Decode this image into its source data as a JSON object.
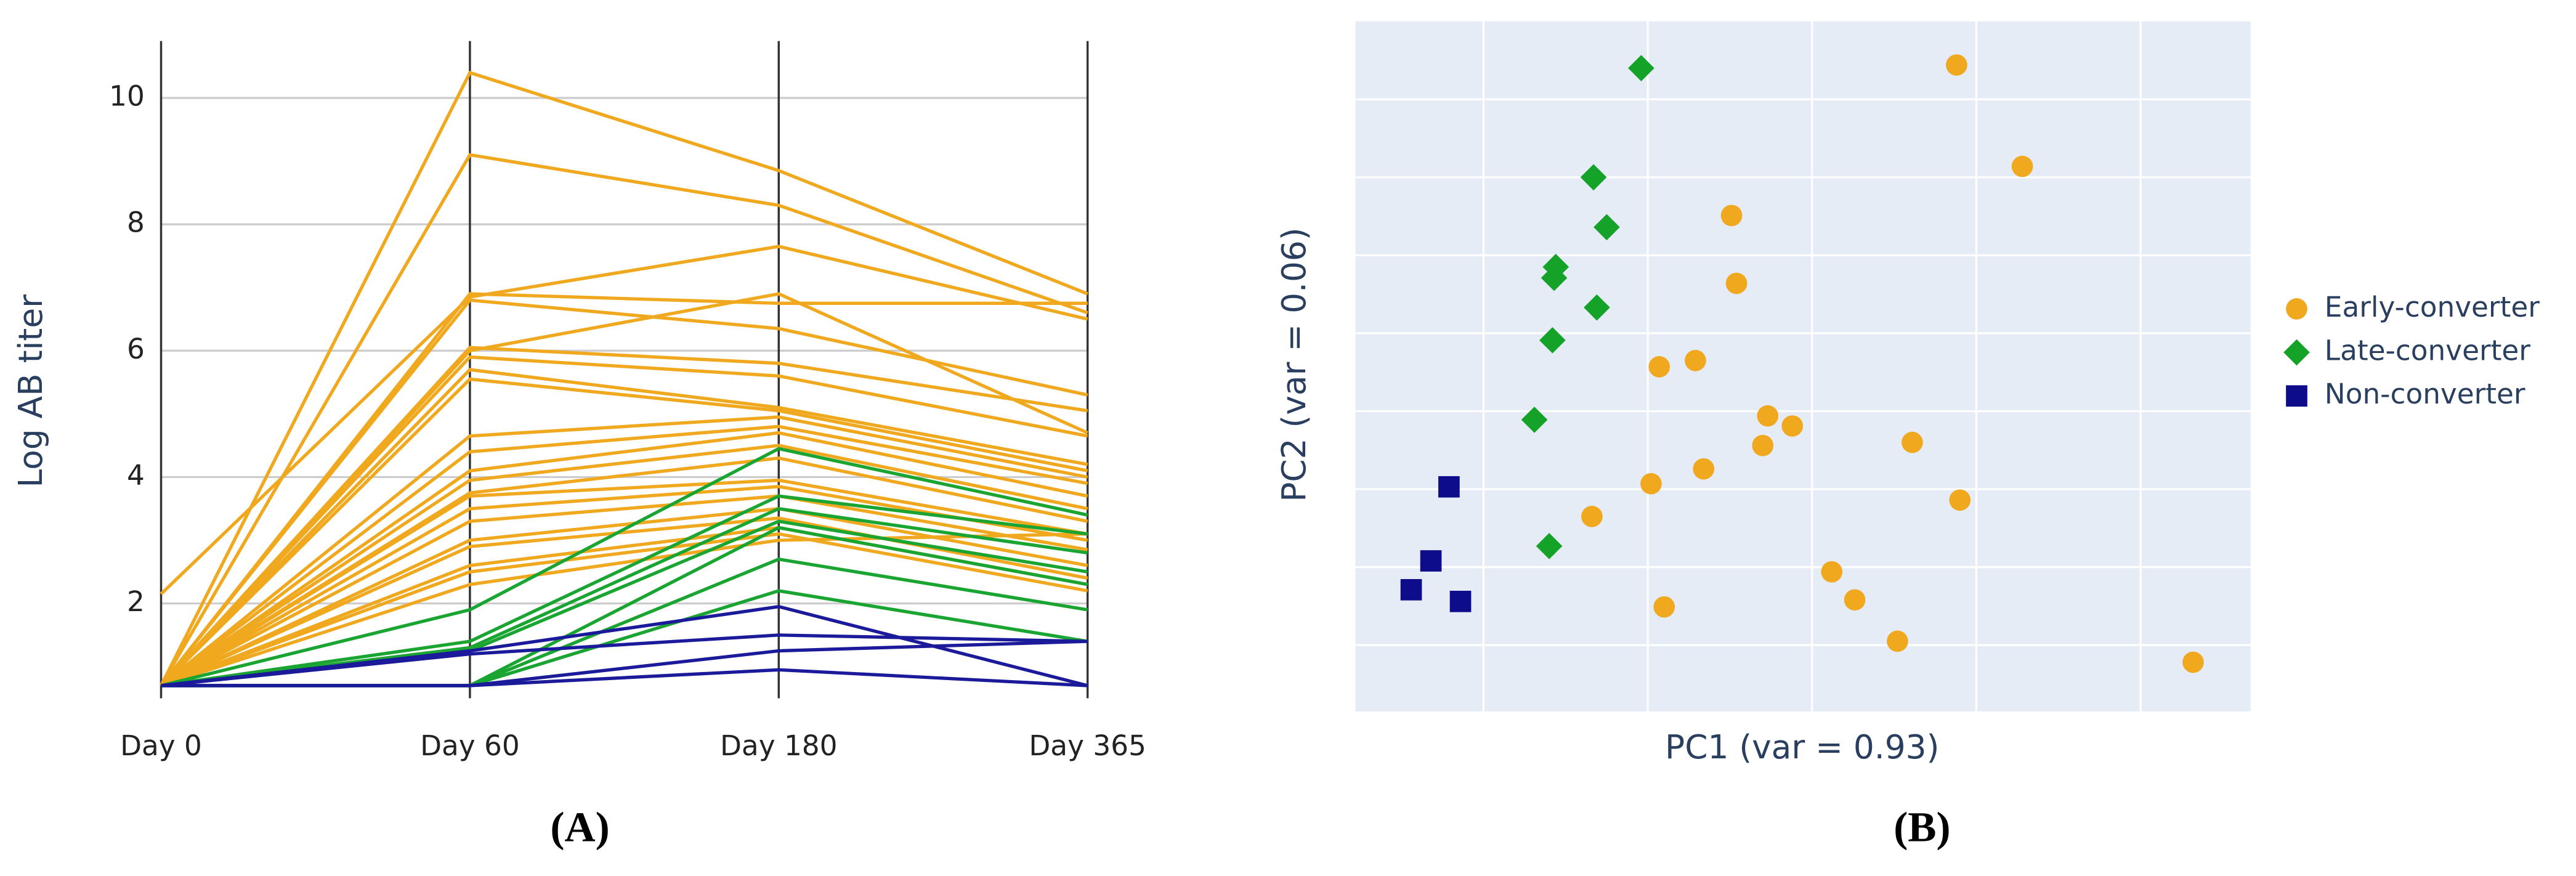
{
  "chart_data": [
    {
      "type": "line",
      "panel_label": "(A)",
      "ylabel": "Log AB titer",
      "categories": [
        "Day 0",
        "Day 60",
        "Day 180",
        "Day 365"
      ],
      "ylim": [
        0.5,
        10.9
      ],
      "yticks": [
        2,
        4,
        6,
        8,
        10
      ],
      "grid": true,
      "series": [
        {
          "color": "#f0a81e",
          "values": [
            0.7,
            10.4,
            8.85,
            6.9
          ]
        },
        {
          "color": "#f0a81e",
          "values": [
            0.7,
            9.1,
            8.3,
            6.6
          ]
        },
        {
          "color": "#f0a81e",
          "values": [
            0.7,
            6.9,
            6.75,
            6.75
          ]
        },
        {
          "color": "#f0a81e",
          "values": [
            2.15,
            6.85,
            7.65,
            6.5
          ]
        },
        {
          "color": "#f0a81e",
          "values": [
            0.7,
            6.8,
            6.35,
            5.3
          ]
        },
        {
          "color": "#f0a81e",
          "values": [
            0.7,
            6.05,
            5.8,
            5.05
          ]
        },
        {
          "color": "#f0a81e",
          "values": [
            0.7,
            6.0,
            6.9,
            4.7
          ]
        },
        {
          "color": "#f0a81e",
          "values": [
            0.7,
            5.9,
            5.6,
            4.65
          ]
        },
        {
          "color": "#f0a81e",
          "values": [
            0.7,
            5.7,
            5.1,
            4.2
          ]
        },
        {
          "color": "#f0a81e",
          "values": [
            0.7,
            5.55,
            5.05,
            4.1
          ]
        },
        {
          "color": "#f0a81e",
          "values": [
            0.7,
            4.65,
            4.95,
            4.0
          ]
        },
        {
          "color": "#f0a81e",
          "values": [
            0.7,
            4.4,
            4.8,
            3.9
          ]
        },
        {
          "color": "#f0a81e",
          "values": [
            0.7,
            4.1,
            4.7,
            3.7
          ]
        },
        {
          "color": "#f0a81e",
          "values": [
            0.7,
            3.95,
            4.5,
            3.5
          ]
        },
        {
          "color": "#f0a81e",
          "values": [
            0.7,
            3.75,
            4.3,
            3.3
          ]
        },
        {
          "color": "#f0a81e",
          "values": [
            0.7,
            3.7,
            3.95,
            3.1
          ]
        },
        {
          "color": "#f0a81e",
          "values": [
            0.7,
            3.5,
            3.85,
            3.0
          ]
        },
        {
          "color": "#f0a81e",
          "values": [
            0.7,
            3.3,
            3.7,
            2.85
          ]
        },
        {
          "color": "#f0a81e",
          "values": [
            0.7,
            3.0,
            3.5,
            2.6
          ]
        },
        {
          "color": "#f0a81e",
          "values": [
            0.7,
            2.9,
            3.35,
            2.4
          ]
        },
        {
          "color": "#f0a81e",
          "values": [
            0.7,
            2.6,
            3.2,
            2.3
          ]
        },
        {
          "color": "#f0a81e",
          "values": [
            0.7,
            2.5,
            3.1,
            2.2
          ]
        },
        {
          "color": "#f0a81e",
          "values": [
            0.7,
            2.3,
            3.0,
            3.1
          ]
        },
        {
          "color": "#1aa532",
          "values": [
            0.7,
            1.9,
            4.45,
            3.4
          ]
        },
        {
          "color": "#1aa532",
          "values": [
            0.7,
            1.4,
            3.7,
            3.1
          ]
        },
        {
          "color": "#1aa532",
          "values": [
            0.7,
            1.3,
            3.5,
            2.8
          ]
        },
        {
          "color": "#1aa532",
          "values": [
            0.7,
            1.25,
            3.3,
            2.5
          ]
        },
        {
          "color": "#1aa532",
          "values": [
            0.7,
            0.7,
            3.2,
            2.3
          ]
        },
        {
          "color": "#1aa532",
          "values": [
            0.7,
            0.7,
            2.7,
            1.9
          ]
        },
        {
          "color": "#1aa532",
          "values": [
            0.7,
            0.7,
            2.2,
            1.4
          ]
        },
        {
          "color": "#1a1a9a",
          "values": [
            0.7,
            1.25,
            1.95,
            0.7
          ]
        },
        {
          "color": "#1a1a9a",
          "values": [
            0.7,
            1.2,
            1.5,
            1.4
          ]
        },
        {
          "color": "#1a1a9a",
          "values": [
            0.7,
            0.7,
            1.25,
            1.4
          ]
        },
        {
          "color": "#1a1a9a",
          "values": [
            0.7,
            0.7,
            0.95,
            0.7
          ]
        }
      ]
    },
    {
      "type": "scatter",
      "panel_label": "(B)",
      "xlabel": "PC1 (var = 0.93)",
      "ylabel": "PC2 (var = 0.06)",
      "xlim": [
        0.22,
        5.67
      ],
      "ylim": [
        0.15,
        9.0
      ],
      "xgrid": [
        1,
        2,
        3,
        4,
        5
      ],
      "ygrid": [
        1,
        2,
        3,
        4,
        5,
        6,
        7,
        8
      ],
      "background": "#e5ecf6",
      "legend": "right",
      "series": [
        {
          "name": "Early-converter",
          "color": "#f0a81e",
          "marker": "circle",
          "x": [
            3.88,
            4.28,
            2.51,
            2.54,
            2.07,
            2.29,
            2.73,
            2.88,
            2.7,
            3.61,
            2.02,
            2.34,
            1.66,
            3.9,
            3.12,
            3.26,
            2.1,
            3.52,
            5.32
          ],
          "values": [
            8.44,
            7.14,
            6.51,
            5.64,
            4.57,
            4.65,
            3.94,
            3.81,
            3.56,
            3.6,
            3.07,
            3.26,
            2.65,
            2.86,
            1.94,
            1.58,
            1.49,
            1.05,
            0.78
          ]
        },
        {
          "name": "Late-converter",
          "color": "#14a228",
          "marker": "diamond",
          "x": [
            1.96,
            1.67,
            1.75,
            1.44,
            1.43,
            1.69,
            1.42,
            1.31,
            1.4
          ],
          "values": [
            8.4,
            7.0,
            6.36,
            5.85,
            5.71,
            5.33,
            4.91,
            3.89,
            2.27
          ]
        },
        {
          "name": "Non-converter",
          "color": "#0d0d8c",
          "marker": "square",
          "x": [
            0.79,
            0.68,
            0.56,
            0.86
          ],
          "values": [
            3.03,
            2.08,
            1.71,
            1.56
          ]
        }
      ]
    }
  ]
}
